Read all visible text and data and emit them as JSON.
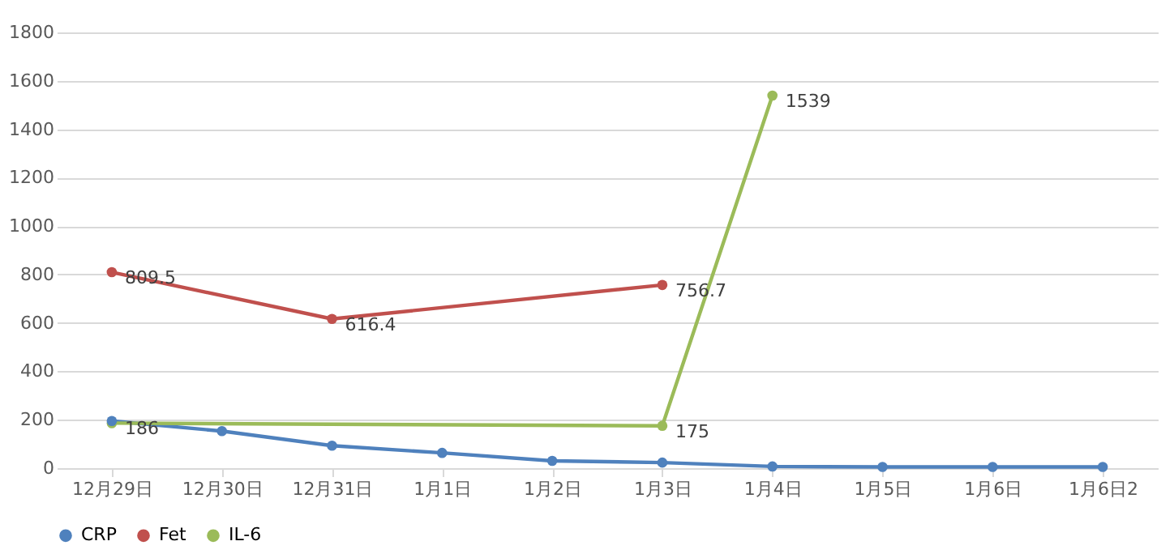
{
  "chart_data": {
    "type": "line",
    "categories": [
      "12月29日",
      "12月30日",
      "12月31日",
      "1月1日",
      "1月2日",
      "1月3日",
      "1月4日",
      "1月5日",
      "1月6日",
      "1月6日2"
    ],
    "series": [
      {
        "name": "CRP",
        "color": "#4f81bd",
        "values": [
          195,
          153,
          93,
          63,
          30,
          23,
          7,
          5,
          5,
          5
        ]
      },
      {
        "name": "Fet",
        "color": "#c0504d",
        "values": [
          809.5,
          null,
          616.4,
          null,
          null,
          756.7,
          null,
          null,
          null,
          null
        ],
        "value_labels": [
          "809.5",
          null,
          "616.4",
          null,
          null,
          "756.7",
          null,
          null,
          null,
          null
        ]
      },
      {
        "name": "IL-6",
        "color": "#9bbb59",
        "values": [
          186,
          null,
          null,
          null,
          null,
          175,
          1539,
          null,
          null,
          null
        ],
        "value_labels": [
          "186",
          null,
          null,
          null,
          null,
          "175",
          "1539",
          null,
          null,
          null
        ]
      }
    ],
    "ylim": [
      0,
      1800
    ],
    "yticks": [
      0,
      200,
      400,
      600,
      800,
      1000,
      1200,
      1400,
      1600,
      1800
    ],
    "grid": "y",
    "legend": "bottom",
    "marker": "circle",
    "line_style": "solid"
  }
}
